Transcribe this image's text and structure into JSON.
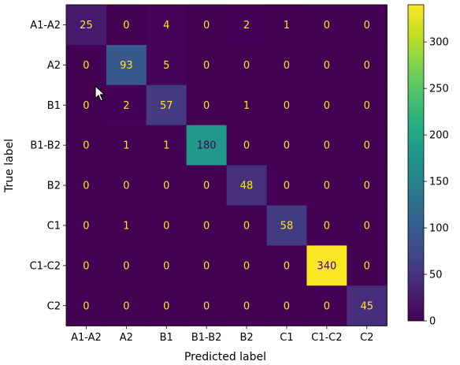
{
  "chart_data": {
    "type": "heatmap",
    "title": "",
    "xlabel": "Predicted label",
    "ylabel": "True label",
    "x_categories": [
      "A1-A2",
      "A2",
      "B1",
      "B1-B2",
      "B2",
      "C1",
      "C1-C2",
      "C2"
    ],
    "y_categories": [
      "A1-A2",
      "A2",
      "B1",
      "B1-B2",
      "B2",
      "C1",
      "C1-C2",
      "C2"
    ],
    "matrix": [
      [
        25,
        0,
        4,
        0,
        2,
        1,
        0,
        0
      ],
      [
        0,
        93,
        5,
        0,
        0,
        0,
        0,
        0
      ],
      [
        0,
        2,
        57,
        0,
        1,
        0,
        0,
        0
      ],
      [
        0,
        1,
        1,
        180,
        0,
        0,
        0,
        0
      ],
      [
        0,
        0,
        0,
        0,
        48,
        0,
        0,
        0
      ],
      [
        0,
        1,
        0,
        0,
        0,
        58,
        0,
        0
      ],
      [
        0,
        0,
        0,
        0,
        0,
        0,
        340,
        0
      ],
      [
        0,
        0,
        0,
        0,
        0,
        0,
        0,
        45
      ]
    ],
    "colorbar": {
      "colormap": "viridis",
      "range": [
        0,
        340
      ],
      "ticks": [
        0,
        50,
        100,
        150,
        200,
        250,
        300
      ]
    },
    "text_colors": {
      "low_value": "#fde725",
      "high_value": "#440154"
    }
  },
  "cursor": {
    "icon": "mouse-pointer-icon"
  }
}
